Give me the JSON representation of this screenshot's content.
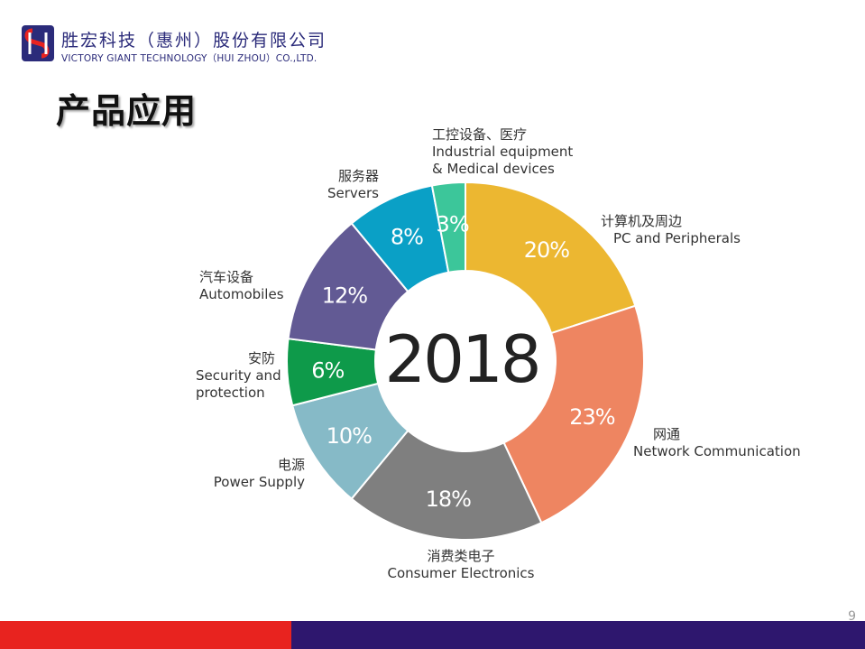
{
  "header": {
    "company_cn": "胜宏科技（惠州）股份有限公司",
    "company_en": "VICTORY GIANT TECHNOLOGY（HUI ZHOU）CO.,LTD.",
    "logo_colors": {
      "primary": "#2b2b7a",
      "accent": "#e8231f"
    }
  },
  "page": {
    "title": "产品应用",
    "number": "9"
  },
  "chart_data": {
    "type": "pie",
    "donut": true,
    "center_label": "2018",
    "unit": "%",
    "slices": [
      {
        "cn": "计算机及周边",
        "en": "PC and Peripherals",
        "value": 20,
        "label": "20%",
        "color": "#ecb731"
      },
      {
        "cn": "网通",
        "en": "Network Communication",
        "value": 23,
        "label": "23%",
        "color": "#ee8561"
      },
      {
        "cn": "消费类电子",
        "en": "Consumer Electronics",
        "value": 18,
        "label": "18%",
        "color": "#7f7f7f"
      },
      {
        "cn": "电源",
        "en": "Power Supply",
        "value": 10,
        "label": "10%",
        "color": "#86bac7"
      },
      {
        "cn": "安防",
        "en": "Security and protection",
        "value": 6,
        "label": "6%",
        "color": "#0e9a4a"
      },
      {
        "cn": "汽车设备",
        "en": "Automobiles",
        "value": 12,
        "label": "12%",
        "color": "#625a94"
      },
      {
        "cn": "服务器",
        "en": "Servers",
        "value": 8,
        "label": "8%",
        "color": "#0aa0c6"
      },
      {
        "cn": "工控设备、医疗",
        "en": "Industrial equipment & Medical devices",
        "value": 3,
        "label": "3%",
        "color": "#3cc69a"
      }
    ]
  },
  "footer": {
    "left_color": "#e8231f",
    "right_color": "#2e176e"
  }
}
